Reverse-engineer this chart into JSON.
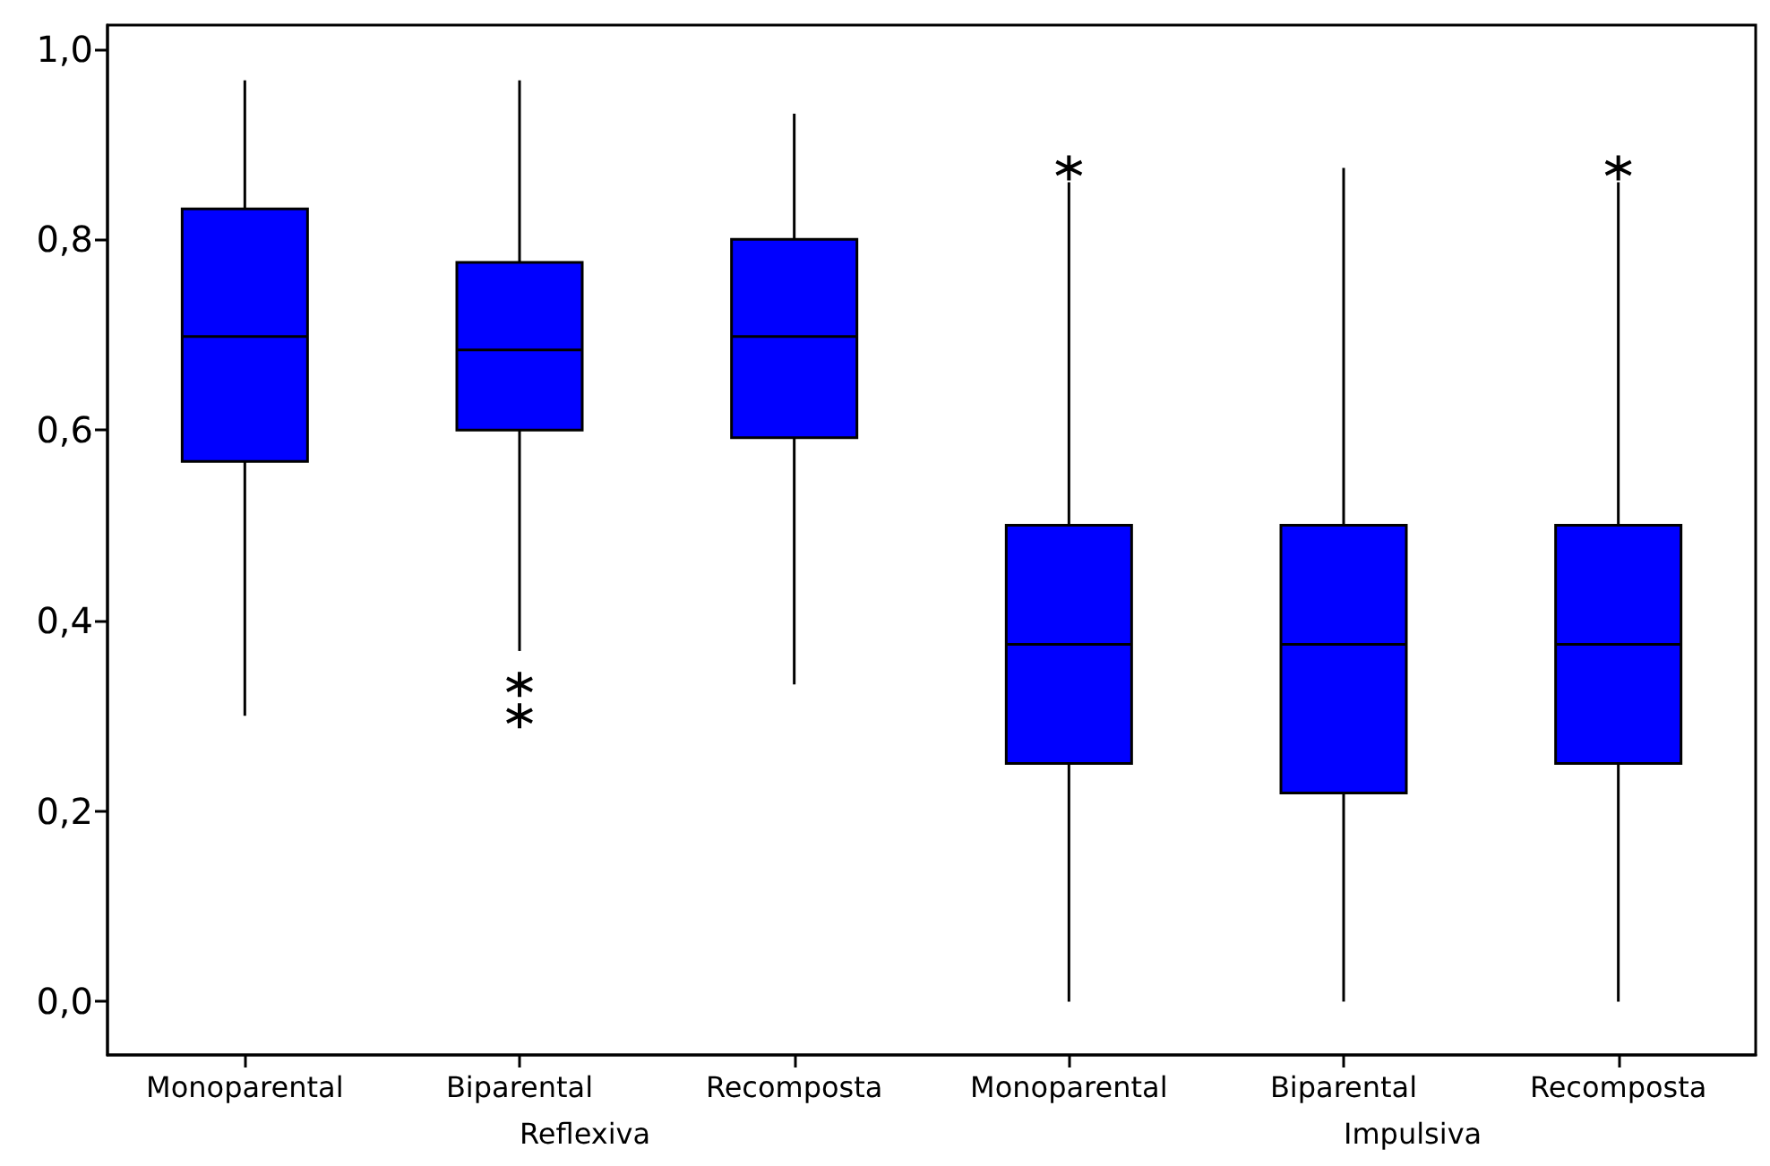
{
  "chart_data": {
    "type": "box",
    "categories": [
      "Monoparental",
      "Biparental",
      "Recomposta",
      "Monoparental",
      "Biparental",
      "Recomposta"
    ],
    "boxes": [
      {
        "low": 0.3,
        "q1": 0.567,
        "median": 0.698,
        "q3": 0.832,
        "high": 0.967
      },
      {
        "low": 0.368,
        "q1": 0.6,
        "median": 0.684,
        "q3": 0.776,
        "high": 0.967,
        "outliers": [
          0.333,
          0.3
        ]
      },
      {
        "low": 0.333,
        "q1": 0.592,
        "median": 0.698,
        "q3": 0.8,
        "high": 0.932
      },
      {
        "low": 0.0,
        "q1": 0.25,
        "median": 0.375,
        "q3": 0.5,
        "high": 0.86,
        "outliers": [
          0.875
        ]
      },
      {
        "low": 0.0,
        "q1": 0.219,
        "median": 0.375,
        "q3": 0.5,
        "high": 0.875
      },
      {
        "low": 0.0,
        "q1": 0.25,
        "median": 0.375,
        "q3": 0.5,
        "high": 0.86,
        "outliers": [
          0.875
        ]
      }
    ],
    "color": "#0000ff",
    "annotations": [
      "Reflexiva",
      "Impulsiva"
    ],
    "ylim": [
      -0.056,
      1.025
    ],
    "yticks": [
      {
        "value": 0,
        "label": "0,0"
      },
      {
        "value": 0.2,
        "label": "0,2"
      },
      {
        "value": 0.4,
        "label": "0,4"
      },
      {
        "value": 0.6,
        "label": "0,6"
      },
      {
        "value": 0.8,
        "label": "0,8"
      },
      {
        "value": 1,
        "label": "1,0"
      }
    ],
    "grid": false,
    "legend": false,
    "marker": "cross"
  }
}
